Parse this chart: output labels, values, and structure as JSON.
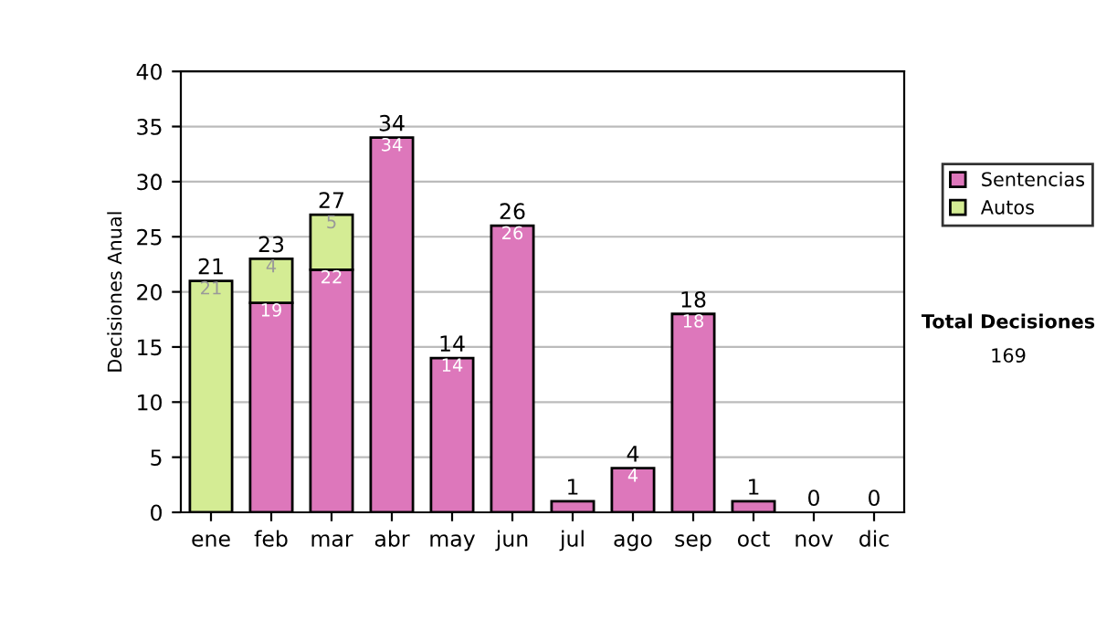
{
  "chart_data": {
    "type": "bar",
    "stacked": true,
    "ylabel": "Decisiones Anual",
    "categories": [
      "ene",
      "feb",
      "mar",
      "abr",
      "may",
      "jun",
      "jul",
      "ago",
      "sep",
      "oct",
      "nov",
      "dic"
    ],
    "series": [
      {
        "name": "Sentencias",
        "color": "#dd77bb",
        "values": [
          0,
          19,
          22,
          34,
          14,
          26,
          1,
          4,
          18,
          1,
          0,
          0
        ],
        "value_labels": [
          null,
          "19",
          "22",
          "34",
          "14",
          "26",
          null,
          "4",
          "18",
          null,
          null,
          null
        ]
      },
      {
        "name": "Autos",
        "color": "#d4ec94",
        "values": [
          21,
          4,
          5,
          0,
          0,
          0,
          0,
          0,
          0,
          0,
          0,
          0
        ],
        "value_labels": [
          "21",
          "4",
          "5",
          null,
          null,
          null,
          null,
          null,
          null,
          null,
          null,
          null
        ]
      }
    ],
    "totals": [
      "21",
      "23",
      "27",
      "34",
      "14",
      "26",
      "1",
      "4",
      "18",
      "1",
      "0",
      "0"
    ],
    "ylim": [
      0,
      40
    ],
    "yticks": [
      0,
      5,
      10,
      15,
      20,
      25,
      30,
      35,
      40
    ],
    "grid": "y",
    "legend": "right",
    "annotations": [
      "Total Decisiones",
      "169"
    ]
  }
}
